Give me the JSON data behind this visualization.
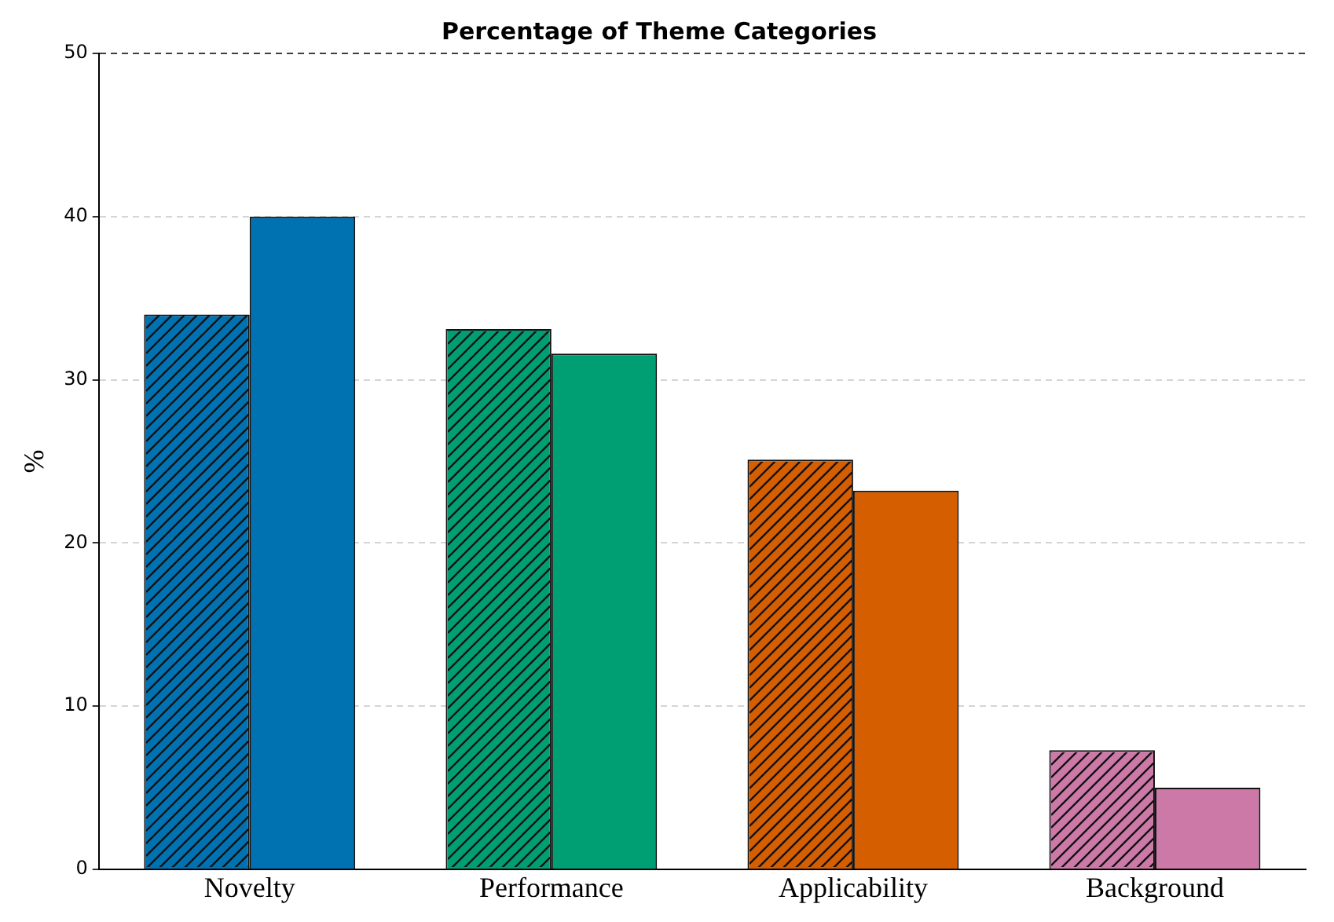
{
  "chart_data": {
    "type": "bar",
    "title": "Percentage of Theme Categories",
    "ylabel": "%",
    "categories": [
      "Novelty",
      "Performance",
      "Applicability",
      "Background"
    ],
    "series": [
      {
        "colors": [
          "#0072b2",
          "#009e73",
          "#d55e00",
          "#cc79a7"
        ],
        "values": [
          34.0,
          33.1,
          25.1,
          7.3
        ]
      },
      {
        "colors": [
          "#0072b2",
          "#009e73",
          "#d55e00",
          "#cc79a7"
        ],
        "values": [
          40.0,
          31.6,
          23.2,
          5.0
        ]
      }
    ],
    "ylim": [
      0,
      50
    ],
    "yticks": [
      0,
      10,
      20,
      30,
      40,
      50
    ],
    "grid": "y",
    "legend": false
  }
}
